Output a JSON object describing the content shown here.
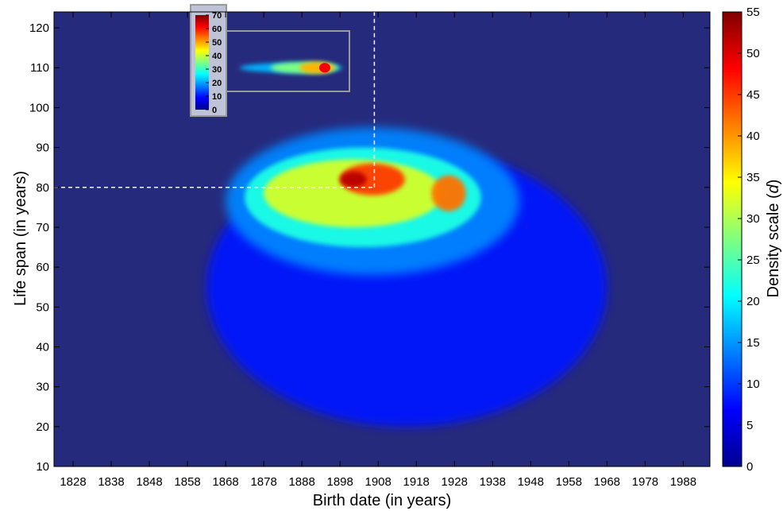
{
  "chart_data": {
    "type": "heatmap",
    "xlabel": "Birth date (in years)",
    "ylabel": "Life span (in years)",
    "colorbar_label": "Density scale (",
    "colorbar_label_var": "d",
    "colorbar_label_close": ")",
    "xlim": [
      1823,
      1995
    ],
    "ylim": [
      10,
      124
    ],
    "x_ticks": [
      "1828",
      "1838",
      "1848",
      "1858",
      "1868",
      "1878",
      "1888",
      "1898",
      "1908",
      "1918",
      "1928",
      "1938",
      "1948",
      "1958",
      "1968",
      "1978",
      "1988"
    ],
    "y_ticks": [
      "10",
      "20",
      "30",
      "40",
      "50",
      "60",
      "70",
      "80",
      "90",
      "100",
      "110",
      "120"
    ],
    "colorbar": {
      "min": 0,
      "max": 55,
      "ticks": [
        "0",
        "5",
        "10",
        "15",
        "20",
        "25",
        "30",
        "35",
        "40",
        "45",
        "50",
        "55"
      ]
    },
    "colormap": "jet",
    "grid": false,
    "reference_lines": [
      {
        "orientation": "horizontal",
        "y": 80,
        "x_from": 1823,
        "x_to": 1907,
        "style": "dashed",
        "color": "#ffffff"
      },
      {
        "orientation": "vertical",
        "x": 1907,
        "y_from": 80,
        "y_to": 124,
        "style": "dashed",
        "color": "#ffffff"
      }
    ],
    "density_regions": [
      {
        "x": 1863,
        "y": 20,
        "x2": 1968,
        "y2": 90,
        "d": 8
      },
      {
        "x": 1868,
        "y": 58,
        "x2": 1945,
        "y2": 95,
        "d": 14
      },
      {
        "x": 1873,
        "y": 65,
        "x2": 1935,
        "y2": 90,
        "d": 22
      },
      {
        "x": 1878,
        "y": 70,
        "x2": 1925,
        "y2": 87,
        "d": 32
      },
      {
        "x": 1898,
        "y": 78,
        "x2": 1915,
        "y2": 86,
        "d": 45
      },
      {
        "x": 1898,
        "y": 80,
        "x2": 1905,
        "y2": 84,
        "d": 52
      },
      {
        "x": 1922,
        "y": 74,
        "x2": 1931,
        "y2": 83,
        "d": 42
      }
    ],
    "inset": {
      "ticks": [
        "0",
        "10",
        "20",
        "30",
        "40",
        "50",
        "60",
        "70"
      ],
      "range": [
        0,
        70
      ],
      "region": {
        "x_from": 1870,
        "x_to": 1897,
        "y": 110,
        "peak_x": 1894,
        "peak_value": 62
      }
    }
  }
}
